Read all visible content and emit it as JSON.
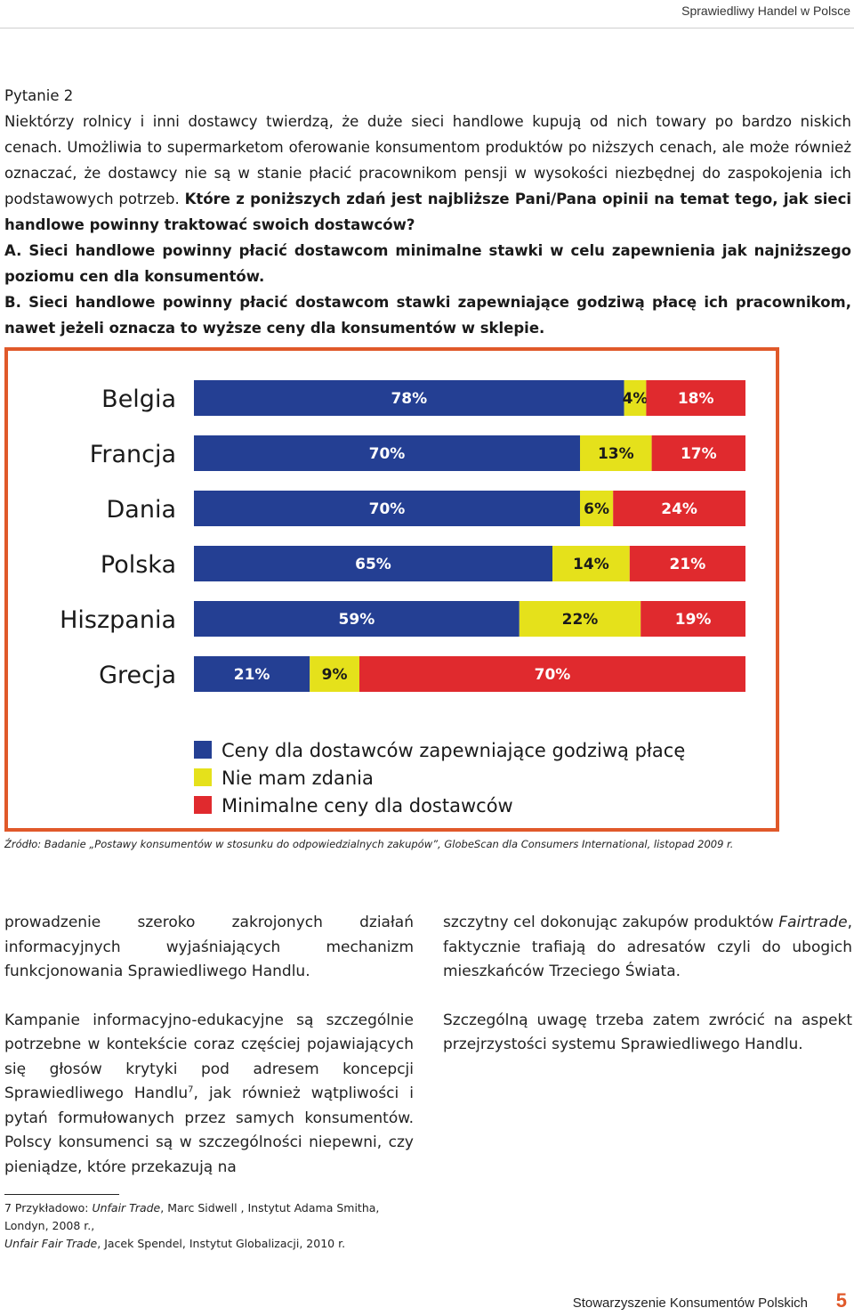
{
  "header": {
    "title": "Sprawiedliwy Handel w Polsce"
  },
  "question": {
    "heading": "Pytanie 2",
    "intro": "Niektórzy rolnicy i inni dostawcy twierdzą, że duże sieci handlowe kupują od nich towary po bardzo niskich cenach. Umożliwia to supermarketom oferowanie konsumentom produktów po niższych cenach, ale może również oznaczać, że dostawcy nie są w stanie płacić pracownikom pensji w wysokości niezbędnej do zaspokojenia ich podstawowych potrzeb.",
    "prompt": "Które z poniższych zdań jest najbliższe Pani/Pana opinii na temat tego, jak sieci handlowe powinny traktować swoich dostawców?",
    "option_a": "A. Sieci handlowe powinny płacić dostawcom minimalne stawki w celu zapewnienia jak najniższego poziomu cen dla konsumentów.",
    "option_b": "B. Sieci handlowe powinny płacić dostawcom stawki zapewniające godziwą płacę ich pracownikom, nawet jeżeli oznacza to wyższe ceny dla konsumentów w sklepie."
  },
  "chart_data": {
    "type": "bar",
    "stacked": true,
    "orientation": "horizontal",
    "categories": [
      "Belgia",
      "Francja",
      "Dania",
      "Polska",
      "Hiszpania",
      "Grecja"
    ],
    "series": [
      {
        "name": "Ceny dla dostawców zapewniające godziwą płacę",
        "color": "#243f93",
        "values": [
          78,
          70,
          70,
          65,
          59,
          21
        ]
      },
      {
        "name": "Nie mam zdania",
        "color": "#e5e11b",
        "values": [
          4,
          13,
          6,
          14,
          22,
          9
        ]
      },
      {
        "name": "Minimalne ceny dla dostawców",
        "color": "#e02a2e",
        "values": [
          18,
          17,
          24,
          21,
          19,
          70
        ]
      }
    ],
    "value_suffix": "%",
    "legend_placement": "bottom-left"
  },
  "source": "Źródło: Badanie „Postawy konsumentów w stosunku do odpowiedzialnych zakupów”, GlobeScan dla Consumers International, listopad 2009 r.",
  "body": {
    "left_p1": "prowadzenie szeroko zakrojonych działań informacyjnych wyjaśniających mechanizm funkcjonowania Sprawiedliwego Handlu.",
    "left_p2_start": "Kampanie informacyjno-edukacyjne są szczególnie potrzebne w kontekście coraz częściej pojawiających się głosów krytyki pod adresem koncepcji Sprawiedliwego Handlu",
    "left_p2_ref": "7",
    "left_p2_end": ", jak również wątpliwości i pytań formułowanych przez samych konsumentów. Polscy konsumenci są w szczególności niepewni, czy pieniądze, które przekazują na",
    "right_p1_a": "szczytny cel dokonując zakupów produktów ",
    "right_p1_italic": "Fairtrade",
    "right_p1_b": ", faktycznie trafiają do adresatów czyli do ubogich mieszkańców Trzeciego Świata.",
    "right_p2": "Szczególną uwagę trzeba zatem zwrócić na aspekt przejrzystości systemu Sprawiedliwego Handlu."
  },
  "footnote": {
    "line1_a": "7 Przykładowo: ",
    "line1_italic": "Unfair Trade",
    "line1_b": ", Marc Sidwell , Instytut Adama Smitha, Londyn, 2008 r.,",
    "line2_italic": "Unfair Fair Trade",
    "line2_b": ", Jacek Spendel, Instytut Globalizacji, 2010 r."
  },
  "footer": {
    "org": "Stowarzyszenie Konsumentów Polskich",
    "page": "5"
  }
}
